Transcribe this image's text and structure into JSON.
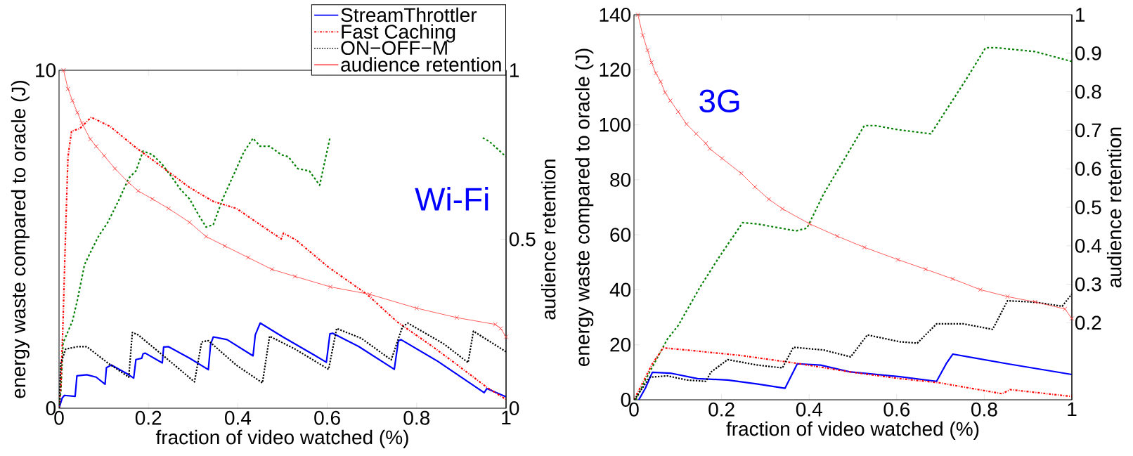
{
  "chart_data": [
    {
      "type": "line",
      "xlabel": "fraction of video watched (%)",
      "ylabel": "energy waste compared to oracle (J)",
      "y2label": "audience retention",
      "xlim": [
        0,
        1
      ],
      "xticks": [
        0,
        0.2,
        0.4,
        0.6,
        0.8,
        1
      ],
      "ylim": [
        0,
        10
      ],
      "yticks": [
        0,
        10
      ],
      "y2lim": [
        0,
        1
      ],
      "y2ticks": [
        0,
        0.5,
        1
      ],
      "legend": "top right",
      "annotations": [
        "Wi-Fi"
      ],
      "series": [
        {
          "name": "StreamThrottler",
          "color": "#0000ff",
          "line_style": "solid",
          "x": [
            0,
            0.007,
            0.012,
            0.036,
            0.04,
            0.062,
            0.083,
            0.103,
            0.106,
            0.117,
            0.151,
            0.167,
            0.172,
            0.185,
            0.188,
            0.193,
            0.231,
            0.234,
            0.245,
            0.292,
            0.334,
            0.339,
            0.345,
            0.376,
            0.434,
            0.439,
            0.45,
            0.502,
            0.57,
            0.598,
            0.606,
            0.612,
            0.67,
            0.75,
            0.759,
            0.765,
            0.847,
            0.951,
            0.957,
            1.0
          ],
          "values": [
            0,
            0.3,
            0.38,
            0.35,
            0.96,
            0.99,
            0.92,
            0.71,
            1.2,
            1.28,
            1.03,
            0.89,
            1.44,
            1.48,
            1.61,
            1.63,
            1.34,
            1.81,
            1.82,
            1.48,
            1.14,
            1.89,
            2.11,
            2.03,
            1.55,
            2.17,
            2.52,
            2.1,
            1.58,
            1.36,
            2.2,
            2.22,
            1.83,
            1.15,
            1.99,
            2.03,
            1.39,
            0.46,
            0.58,
            0.34
          ]
        },
        {
          "color": "#008000",
          "line_style": "dashed",
          "x": [
            0,
            0.004,
            0.009,
            0.03,
            0.041,
            0.057,
            0.072,
            0.088,
            0.109,
            0.135,
            0.156,
            0.172,
            0.188,
            0.209,
            0.23,
            0.25,
            0.272,
            0.292,
            0.313,
            0.329,
            0.345,
            0.366,
            0.392,
            0.413,
            0.434,
            0.45,
            0.471,
            0.497,
            0.513,
            0.534,
            0.56,
            0.583,
            0.606,
            0.62,
            0.94,
            0.948,
            0.963,
            1.0
          ],
          "values": [
            0,
            0.5,
            1.93,
            2.58,
            3.2,
            4.25,
            4.66,
            5.08,
            5.5,
            6.19,
            6.81,
            7.02,
            7.61,
            7.5,
            7.23,
            6.88,
            6.47,
            6.19,
            5.7,
            5.36,
            5.43,
            6.19,
            6.95,
            7.57,
            7.99,
            7.75,
            7.75,
            7.5,
            7.44,
            7.09,
            7.02,
            6.6,
            8.0,
            null,
            null,
            8.0,
            7.89,
            7.44
          ]
        },
        {
          "name": "Fast Caching",
          "color": "#ff0000",
          "line_style": "dashdot",
          "x": [
            0,
            0.004,
            0.009,
            0.015,
            0.02,
            0.028,
            0.046,
            0.072,
            0.114,
            0.172,
            0.214,
            0.292,
            0.345,
            0.397,
            0.45,
            0.497,
            0.502,
            0.53,
            0.602,
            0.689,
            0.756,
            0.835,
            0.884,
            0.957,
            1.0
          ],
          "values": [
            0,
            0.64,
            2.58,
            5.36,
            7.44,
            8.2,
            8.27,
            8.61,
            8.34,
            7.71,
            7.3,
            6.53,
            6.12,
            5.91,
            5.43,
            5.01,
            5.18,
            4.98,
            4.18,
            3.37,
            2.56,
            1.83,
            1.35,
            0.62,
            0.26
          ]
        },
        {
          "name": "ON−OFF−M",
          "color": "#000000",
          "line_style": "dotted",
          "x": [
            0,
            0.004,
            0.015,
            0.041,
            0.062,
            0.109,
            0.156,
            0.164,
            0.177,
            0.24,
            0.303,
            0.319,
            0.334,
            0.397,
            0.455,
            0.471,
            0.528,
            0.603,
            0.621,
            0.676,
            0.743,
            0.768,
            0.78,
            0.86,
            0.915,
            0.927,
            1.0
          ],
          "values": [
            0,
            1.34,
            1.75,
            1.82,
            1.82,
            1.34,
            0.92,
            2.24,
            2.17,
            1.48,
            0.78,
            1.96,
            2.0,
            1.27,
            0.75,
            2.13,
            1.75,
            1.15,
            2.36,
            2.07,
            1.43,
            2.4,
            2.52,
            1.91,
            1.35,
            2.28,
            1.67
          ]
        },
        {
          "name": "audience retention",
          "color": "#ff3333",
          "line_style": "solid",
          "marker": "cross",
          "axis": "y2",
          "x": [
            0.01,
            0.02,
            0.03,
            0.041,
            0.051,
            0.07,
            0.083,
            0.101,
            0.125,
            0.156,
            0.177,
            0.209,
            0.245,
            0.292,
            0.329,
            0.371,
            0.423,
            0.476,
            0.528,
            0.607,
            0.695,
            0.8,
            0.89,
            0.976,
            0.988,
            1.0
          ],
          "values": [
            1.0,
            0.945,
            0.91,
            0.875,
            0.844,
            0.796,
            0.775,
            0.747,
            0.709,
            0.667,
            0.643,
            0.619,
            0.591,
            0.55,
            0.508,
            0.48,
            0.446,
            0.411,
            0.39,
            0.359,
            0.337,
            0.296,
            0.268,
            0.248,
            0.236,
            0.211
          ]
        }
      ]
    },
    {
      "type": "line",
      "xlabel": "fraction of video watched (%)",
      "ylabel": "energy waste compared to oracle (J)",
      "y2label": "audience retention",
      "xlim": [
        0,
        1
      ],
      "xticks": [
        0,
        0.2,
        0.4,
        0.6,
        0.8,
        1
      ],
      "ylim": [
        0,
        140
      ],
      "yticks": [
        0,
        20,
        40,
        60,
        80,
        100,
        120,
        140
      ],
      "y2lim": [
        0,
        1
      ],
      "y2ticks": [
        0.2,
        0.3,
        0.4,
        0.5,
        0.6,
        0.7,
        0.8,
        0.9,
        1
      ],
      "annotations": [
        "3G"
      ],
      "series": [
        {
          "color": "#0000ff",
          "line_style": "solid",
          "x": [
            0.011,
            0.026,
            0.042,
            0.083,
            0.145,
            0.214,
            0.283,
            0.345,
            0.373,
            0.426,
            0.495,
            0.607,
            0.691,
            0.713,
            0.728,
            0.853,
            1.0
          ],
          "values": [
            0,
            4.2,
            10,
            9.7,
            7.7,
            7.2,
            5.7,
            4.2,
            13.1,
            12.6,
            10.1,
            8.4,
            6.7,
            13.1,
            16.6,
            13.1,
            9.2
          ]
        },
        {
          "color": "#008000",
          "line_style": "dashed",
          "x": [
            0.004,
            0.026,
            0.076,
            0.101,
            0.151,
            0.195,
            0.248,
            0.283,
            0.37,
            0.395,
            0.433,
            0.526,
            0.551,
            0.603,
            0.678,
            0.759,
            0.803,
            0.828,
            0.916,
            1.0
          ],
          "values": [
            0,
            7.2,
            22,
            27,
            41,
            52,
            64.4,
            63.9,
            61.4,
            62.4,
            74.8,
            99.7,
            99.7,
            98.2,
            96.7,
            116.6,
            128,
            128,
            126.6,
            123
          ]
        },
        {
          "color": "#ff0000",
          "line_style": "dashdot",
          "x": [
            0,
            0.042,
            0.067,
            0.12,
            0.245,
            0.37,
            0.495,
            0.607,
            0.697,
            0.841,
            0.859,
            1.0
          ],
          "values": [
            0,
            13.1,
            18.9,
            18.1,
            16.1,
            13.3,
            10.1,
            7.7,
            6.2,
            2.2,
            3.7,
            1.2
          ]
        },
        {
          "color": "#000000",
          "line_style": "dotted",
          "x": [
            0.001,
            0.036,
            0.076,
            0.12,
            0.164,
            0.176,
            0.214,
            0.283,
            0.339,
            0.364,
            0.433,
            0.495,
            0.533,
            0.607,
            0.647,
            0.691,
            0.753,
            0.819,
            0.853,
            0.916,
            0.978,
            1.0
          ],
          "values": [
            0,
            8.2,
            8.7,
            7.2,
            6.7,
            10.1,
            14.6,
            12.6,
            11.6,
            19.1,
            18.1,
            15.6,
            23.6,
            21.1,
            20.6,
            27.6,
            27.6,
            25.6,
            36.0,
            35.5,
            34.0,
            38.5
          ]
        },
        {
          "color": "#ff3333",
          "line_style": "solid",
          "marker": "cross",
          "axis": "y2",
          "x": [
            0.009,
            0.02,
            0.031,
            0.04,
            0.05,
            0.061,
            0.071,
            0.083,
            0.101,
            0.12,
            0.142,
            0.164,
            0.173,
            0.201,
            0.245,
            0.276,
            0.308,
            0.339,
            0.401,
            0.464,
            0.526,
            0.603,
            0.666,
            0.728,
            0.791,
            0.853,
            0.916,
            0.984,
            1.0
          ],
          "values": [
            1.0,
            0.947,
            0.908,
            0.876,
            0.848,
            0.826,
            0.798,
            0.777,
            0.748,
            0.716,
            0.691,
            0.666,
            0.652,
            0.627,
            0.588,
            0.553,
            0.521,
            0.496,
            0.457,
            0.425,
            0.396,
            0.364,
            0.339,
            0.314,
            0.286,
            0.268,
            0.254,
            0.236,
            0.211
          ]
        }
      ]
    }
  ]
}
